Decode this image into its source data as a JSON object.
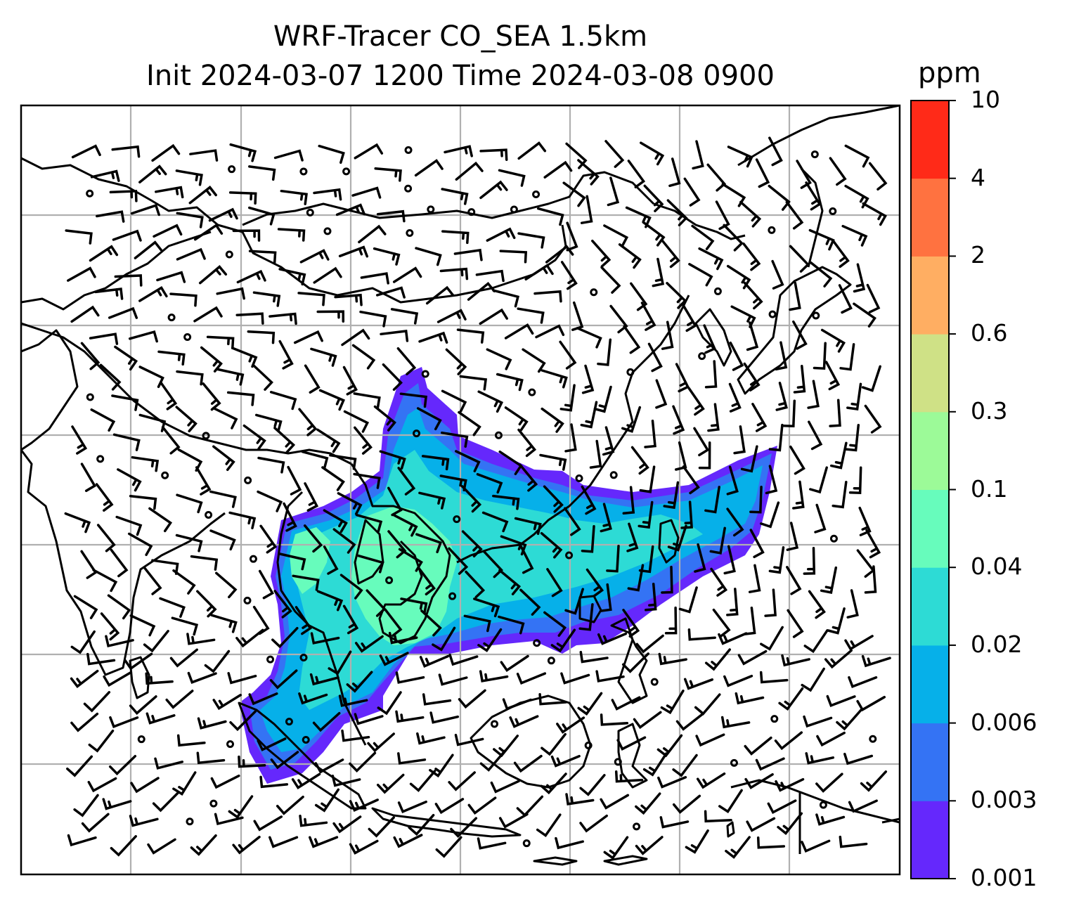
{
  "title": {
    "line1": "WRF-Tracer CO_SEA 1.5km",
    "line2": "Init 2024-03-07 1200 Time 2024-03-08 0900"
  },
  "colorbar": {
    "unit": "ppm",
    "levels": [
      "0.001",
      "0.003",
      "0.006",
      "0.02",
      "0.04",
      "0.1",
      "0.3",
      "0.6",
      "2",
      "4",
      "10"
    ],
    "colors": [
      "#6528fc",
      "#3473f4",
      "#06b0e9",
      "#2ddbd5",
      "#67fcbc",
      "#9cfa98",
      "#cfe186",
      "#ffae62",
      "#ff7240",
      "#ff2a18"
    ]
  },
  "map": {
    "type": "filled-contour map with wind barbs",
    "field": "CO tracer concentration",
    "region": "Southeast and East Asia",
    "gridlines": true,
    "coastlines": true,
    "wind_barbs": true,
    "line_color": "#000000",
    "grid_color": "#b0b0b0"
  }
}
